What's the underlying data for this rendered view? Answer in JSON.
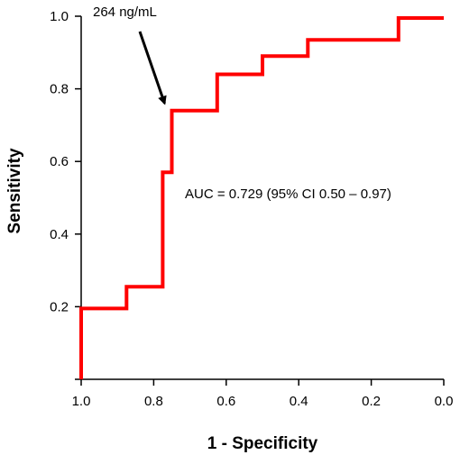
{
  "chart_data": {
    "type": "line",
    "xlabel": "1 - Specificity",
    "ylabel": "Sensitivity",
    "xlim": [
      1.0,
      0.0
    ],
    "ylim": [
      0.0,
      1.0
    ],
    "x_reversed": true,
    "grid": false,
    "x_ticks": [
      "1.0",
      "0.8",
      "0.6",
      "0.4",
      "0.2",
      "0.0"
    ],
    "y_ticks": [
      "0.2",
      "0.4",
      "0.6",
      "0.8",
      "1.0"
    ],
    "x_tick_values": [
      1.0,
      0.8,
      0.6,
      0.4,
      0.2,
      0.0
    ],
    "y_tick_values": [
      0.2,
      0.4,
      0.6,
      0.8,
      1.0
    ],
    "line_color": "#ff0000",
    "series": [
      {
        "x": [
          1.0,
          1.0,
          0.875,
          0.875,
          0.775,
          0.775,
          0.75,
          0.75,
          0.625,
          0.625,
          0.5,
          0.5,
          0.375,
          0.375,
          0.125,
          0.125,
          0.0
        ],
        "y": [
          0.0,
          0.195,
          0.195,
          0.255,
          0.255,
          0.57,
          0.57,
          0.74,
          0.74,
          0.84,
          0.84,
          0.89,
          0.89,
          0.935,
          0.935,
          0.995,
          0.995
        ]
      }
    ],
    "annotations": {
      "cutoff_label": "264 ng/mL",
      "auc_label": "AUC = 0.729 (95%  CI 0.50 – 0.97)"
    },
    "arrow_target": {
      "x": 0.75,
      "y": 0.74
    }
  }
}
